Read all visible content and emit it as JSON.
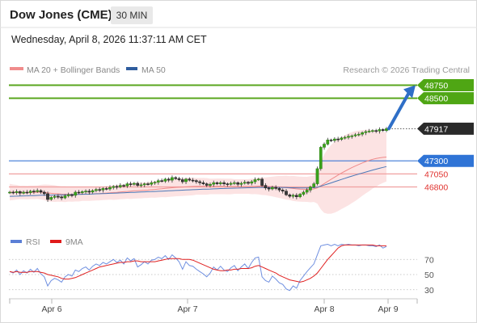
{
  "header": {
    "title": "Dow Jones (CME)",
    "timeframe": "30 MIN"
  },
  "timestamp": "Wednesday, April 8, 2026 11:37:11 AM CET",
  "chart_data": [
    {
      "type": "candlestick",
      "legend": [
        {
          "label": "MA 20 + Bollinger Bands",
          "color": "#f08c8c"
        },
        {
          "label": "MA 50",
          "color": "#2f5d9e"
        }
      ],
      "credit": "Research © 2026 Trading Central",
      "x_tick_labels": [
        "Apr 6",
        "Apr 7",
        "Apr 8",
        "Apr 9"
      ],
      "ylim": [
        46350,
        48950
      ],
      "closes": [
        46700,
        46690,
        46710,
        46680,
        46700,
        46690,
        46720,
        46710,
        46730,
        46700,
        46670,
        46560,
        46600,
        46620,
        46610,
        46590,
        46630,
        46650,
        46640,
        46700,
        46690,
        46710,
        46720,
        46700,
        46730,
        46750,
        46740,
        46770,
        46760,
        46790,
        46810,
        46800,
        46830,
        46820,
        46860,
        46850,
        46870,
        46830,
        46840,
        46860,
        46850,
        46880,
        46890,
        46920,
        46910,
        46950,
        46930,
        46980,
        46960,
        46940,
        46900,
        46950,
        46930,
        46920,
        46900,
        46880,
        46860,
        46830,
        46850,
        46880,
        46860,
        46880,
        46860,
        46850,
        46870,
        46880,
        46850,
        46870,
        46890,
        46870,
        46900,
        46940,
        46950,
        46830,
        46780,
        46760,
        46790,
        46770,
        46740,
        46720,
        46650,
        46620,
        46640,
        46610,
        46660,
        46700,
        46740,
        46800,
        46860,
        47150,
        47560,
        47620,
        47700,
        47690,
        47720,
        47710,
        47740,
        47750,
        47770,
        47780,
        47800,
        47810,
        47840,
        47860,
        47870,
        47880,
        47870,
        47900,
        47880,
        47917
      ],
      "ma20": [
        46700,
        46697,
        46699,
        46693,
        46694,
        46692,
        46696,
        46697,
        46700,
        46700,
        46697,
        46685,
        46678,
        46673,
        46668,
        46663,
        46661,
        46660,
        46658,
        46662,
        46661,
        46662,
        46663,
        46664,
        46667,
        46671,
        46673,
        46678,
        46682,
        46687,
        46693,
        46697,
        46703,
        46708,
        46714,
        46719,
        46725,
        46728,
        46732,
        46736,
        46740,
        46746,
        46752,
        46759,
        46765,
        46772,
        46778,
        46785,
        46790,
        46794,
        46797,
        46802,
        46806,
        46809,
        46811,
        46812,
        46812,
        46811,
        46810,
        46810,
        46811,
        46811,
        46810,
        46809,
        46809,
        46809,
        46808,
        46808,
        46809,
        46809,
        46810,
        46813,
        46816,
        46816,
        46813,
        46809,
        46807,
        46804,
        46800,
        46794,
        46786,
        46778,
        46771,
        46763,
        46758,
        46755,
        46754,
        46756,
        46762,
        46781,
        46821,
        46863,
        46906,
        46947,
        46987,
        47027,
        47066,
        47102,
        47137,
        47170,
        47201,
        47231,
        47260,
        47286,
        47309,
        47329,
        47345,
        47357,
        47367,
        47373
      ],
      "ma50": [
        46620,
        46622,
        46624,
        46626,
        46628,
        46630,
        46633,
        46635,
        46637,
        46640,
        46642,
        46643,
        46644,
        46645,
        46647,
        46648,
        46650,
        46651,
        46653,
        46655,
        46657,
        46659,
        46661,
        46663,
        46666,
        46668,
        46670,
        46673,
        46675,
        46678,
        46680,
        46683,
        46686,
        46688,
        46691,
        46694,
        46697,
        46699,
        46702,
        46705,
        46708,
        46711,
        46714,
        46717,
        46720,
        46723,
        46726,
        46729,
        46732,
        46735,
        46738,
        46741,
        46744,
        46747,
        46750,
        46753,
        46756,
        46758,
        46760,
        46763,
        46766,
        46769,
        46771,
        46773,
        46775,
        46777,
        46779,
        46781,
        46783,
        46784,
        46786,
        46788,
        46790,
        46790,
        46790,
        46790,
        46790,
        46790,
        46790,
        46789,
        46787,
        46785,
        46784,
        46783,
        46782,
        46781,
        46781,
        46783,
        46786,
        46795,
        46815,
        46835,
        46856,
        46878,
        46900,
        46922,
        46944,
        46966,
        46987,
        47007,
        47027,
        47047,
        47066,
        47085,
        47104,
        47123,
        47141,
        47158,
        47174,
        47190
      ],
      "bollinger_width": [
        160,
        150,
        140,
        130,
        130,
        130,
        130,
        130,
        130,
        140,
        150,
        160,
        160,
        160,
        150,
        150,
        150,
        140,
        140,
        140,
        140,
        130,
        130,
        130,
        130,
        130,
        130,
        130,
        130,
        130,
        140,
        140,
        140,
        140,
        140,
        150,
        150,
        150,
        150,
        150,
        150,
        150,
        160,
        160,
        160,
        170,
        170,
        170,
        170,
        170,
        170,
        170,
        170,
        170,
        160,
        160,
        160,
        160,
        150,
        150,
        150,
        150,
        150,
        150,
        150,
        140,
        140,
        140,
        140,
        140,
        150,
        150,
        160,
        170,
        170,
        180,
        190,
        200,
        210,
        220,
        230,
        230,
        240,
        240,
        240,
        240,
        240,
        250,
        250,
        300,
        450,
        560,
        620,
        660,
        680,
        690,
        690,
        690,
        690,
        680,
        670,
        650,
        630,
        610,
        590,
        560,
        540,
        510,
        490,
        470
      ],
      "levels": [
        {
          "value": 48750,
          "label": "48750",
          "kind": "target"
        },
        {
          "value": 48500,
          "label": "48500",
          "kind": "target"
        },
        {
          "value": 47917,
          "label": "47917",
          "kind": "last"
        },
        {
          "value": 47300,
          "label": "47300",
          "kind": "pivot"
        },
        {
          "value": 47050,
          "label": "47050",
          "kind": "support"
        },
        {
          "value": 46800,
          "label": "46800",
          "kind": "support"
        }
      ],
      "projection": {
        "from_value": 47917,
        "to_value": 48750
      }
    },
    {
      "type": "line",
      "legend": [
        {
          "label": "RSI",
          "color": "#5b7fd6"
        },
        {
          "label": "9MA",
          "color": "#e01b1b"
        }
      ],
      "y_tick_labels": [
        "70",
        "50",
        "30"
      ],
      "ylim": [
        20,
        80
      ],
      "rsi": [
        54,
        52,
        56,
        50,
        55,
        52,
        57,
        53,
        58,
        51,
        47,
        35,
        42,
        45,
        43,
        40,
        47,
        50,
        48,
        56,
        54,
        58,
        60,
        56,
        61,
        64,
        62,
        66,
        64,
        67,
        70,
        66,
        69,
        64,
        72,
        68,
        71,
        60,
        63,
        67,
        64,
        69,
        70,
        73,
        71,
        75,
        70,
        76,
        72,
        67,
        57,
        67,
        62,
        61,
        57,
        54,
        51,
        47,
        52,
        60,
        56,
        61,
        56,
        54,
        59,
        62,
        55,
        60,
        64,
        58,
        66,
        72,
        73,
        47,
        42,
        40,
        48,
        44,
        39,
        37,
        31,
        29,
        35,
        32,
        42,
        48,
        54,
        59,
        64,
        76,
        88,
        89,
        90,
        88,
        90,
        88,
        90,
        89,
        90,
        89,
        89,
        88,
        89,
        89,
        88,
        88,
        87,
        89,
        85,
        87
      ],
      "ma9": [
        54,
        53,
        54,
        53,
        53,
        53,
        54,
        54,
        54,
        53,
        52,
        50,
        49,
        48,
        47,
        45,
        44,
        44,
        45,
        46,
        48,
        50,
        52,
        54,
        56,
        58,
        60,
        61,
        62,
        63,
        64,
        65,
        66,
        66,
        67,
        67,
        68,
        68,
        67,
        67,
        67,
        67,
        67,
        68,
        69,
        70,
        71,
        71,
        71,
        71,
        70,
        70,
        70,
        69,
        67,
        65,
        63,
        61,
        59,
        57,
        56,
        55,
        55,
        56,
        56,
        57,
        57,
        58,
        58,
        58,
        59,
        61,
        62,
        60,
        58,
        56,
        54,
        52,
        49,
        47,
        45,
        43,
        42,
        41,
        40,
        41,
        43,
        45,
        48,
        52,
        58,
        64,
        70,
        75,
        80,
        85,
        88,
        89,
        89,
        89,
        89,
        89,
        89,
        89,
        89,
        89,
        88,
        88,
        88,
        88
      ],
      "reference_lines": [
        70,
        50,
        30
      ]
    }
  ]
}
